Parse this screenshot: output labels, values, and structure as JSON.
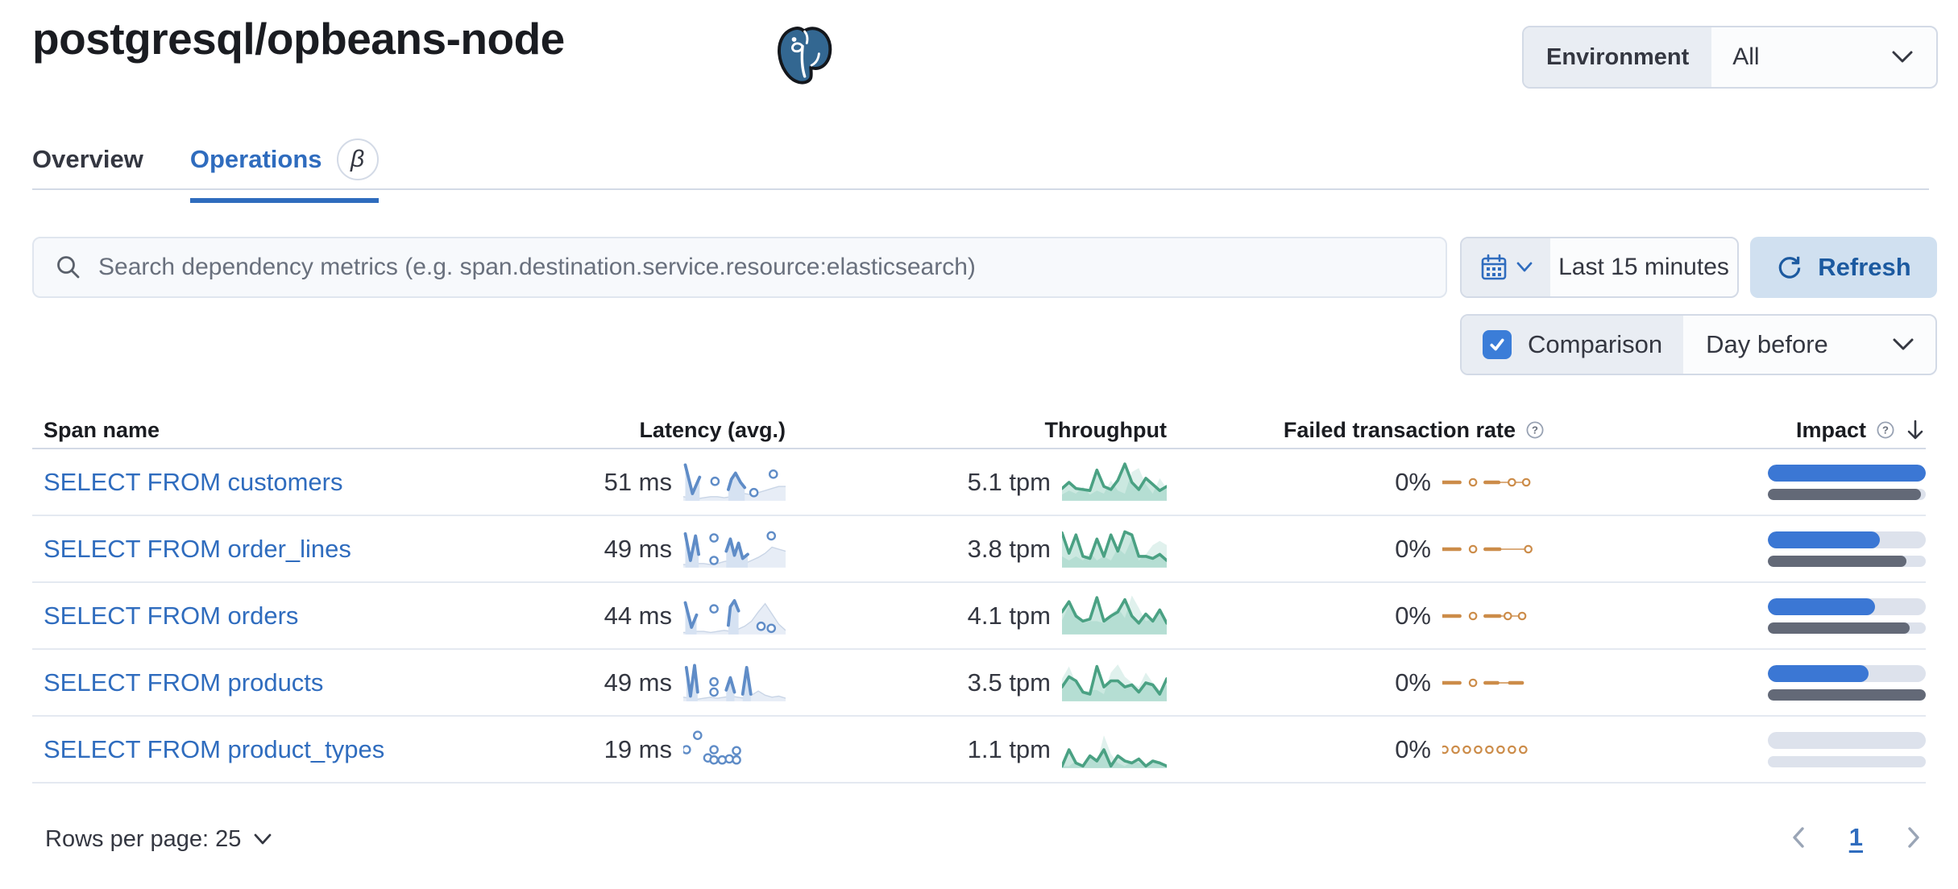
{
  "page": {
    "title": "postgresql/opbeans-node"
  },
  "env_filter": {
    "label": "Environment",
    "value": "All"
  },
  "tabs": [
    {
      "label": "Overview",
      "active": false
    },
    {
      "label": "Operations",
      "active": true,
      "beta": "β"
    }
  ],
  "toolbar": {
    "search_placeholder": "Search dependency metrics (e.g. span.destination.service.resource:elasticsearch)",
    "time_range": "Last 15 minutes",
    "refresh_label": "Refresh",
    "comparison_label": "Comparison",
    "comparison_checked": true,
    "comparison_option": "Day before"
  },
  "table": {
    "columns": [
      {
        "label": "Span name"
      },
      {
        "label": "Latency (avg.)"
      },
      {
        "label": "Throughput"
      },
      {
        "label": "Failed transaction rate",
        "info": true
      },
      {
        "label": "Impact",
        "info": true,
        "sorted": "desc"
      }
    ],
    "rows": [
      {
        "span_name": "SELECT FROM customers",
        "latency": "51 ms",
        "throughput": "5.1 tpm",
        "failed_rate": "0%",
        "impact": {
          "current": 100,
          "previous": 97
        },
        "latency_spark": {
          "prev": [
            36,
            37,
            38,
            37,
            36,
            36,
            37,
            36,
            34,
            33,
            34,
            32,
            30,
            28,
            26,
            26
          ],
          "segments": [
            [
              [
                2,
                5
              ],
              [
                9,
                33
              ],
              [
                16,
                17
              ]
            ],
            [
              [
                44,
                29
              ],
              [
                47,
                19
              ],
              [
                51,
                13
              ],
              [
                56,
                22
              ],
              [
                60,
                27
              ]
            ]
          ],
          "markers": [
            [
              31,
              21
            ],
            [
              69,
              32
            ],
            [
              88,
              14
            ]
          ]
        },
        "throughput_spark": {
          "prev": [
            34,
            30,
            33,
            26,
            34,
            30,
            33,
            20,
            30,
            33,
            12,
            8,
            24,
            33,
            18,
            28
          ],
          "curr": [
            28,
            22,
            28,
            29,
            30,
            10,
            26,
            29,
            20,
            4,
            22,
            29,
            18,
            24,
            30,
            26
          ]
        },
        "failed_spark": {
          "dashes": [
            [
              0,
              17
            ],
            [
              42,
              55
            ]
          ],
          "lines": [
            [
              55,
              84
            ]
          ],
          "circles": [
            30,
            68,
            82
          ]
        }
      },
      {
        "span_name": "SELECT FROM order_lines",
        "latency": "49 ms",
        "throughput": "3.8 tpm",
        "failed_rate": "0%",
        "impact": {
          "current": 71,
          "previous": 88
        },
        "latency_spark": {
          "prev": [
            37,
            37,
            36,
            36,
            37,
            36,
            34,
            33,
            34,
            36,
            33,
            30,
            26,
            20,
            22,
            24
          ],
          "segments": [
            [
              [
                2,
                7
              ],
              [
                7,
                33
              ],
              [
                12,
                9
              ],
              [
                15,
                27
              ]
            ],
            [
              [
                42,
                24
              ],
              [
                46,
                12
              ],
              [
                50,
                28
              ],
              [
                54,
                16
              ],
              [
                58,
                31
              ],
              [
                63,
                27
              ]
            ]
          ],
          "markers": [
            [
              30,
              11
            ],
            [
              30,
              33
            ],
            [
              86,
              9
            ]
          ]
        },
        "throughput_spark": {
          "prev": [
            29,
            33,
            29,
            33,
            25,
            33,
            29,
            33,
            21,
            27,
            12,
            33,
            27,
            18,
            14,
            18
          ],
          "curr": [
            6,
            26,
            8,
            29,
            31,
            12,
            29,
            8,
            24,
            5,
            8,
            29,
            29,
            31,
            27,
            33
          ]
        },
        "failed_spark": {
          "dashes": [
            [
              0,
              17
            ],
            [
              42,
              56
            ]
          ],
          "lines": [
            [
              56,
              84
            ]
          ],
          "circles": [
            30,
            84
          ]
        }
      },
      {
        "span_name": "SELECT FROM orders",
        "latency": "44 ms",
        "throughput": "4.1 tpm",
        "failed_rate": "0%",
        "impact": {
          "current": 68,
          "previous": 90
        },
        "latency_spark": {
          "prev": [
            38,
            38,
            37,
            37,
            38,
            37,
            36,
            37,
            35,
            32,
            27,
            18,
            10,
            20,
            30,
            36
          ],
          "segments": [
            [
              [
                2,
                9
              ],
              [
                8,
                33
              ],
              [
                13,
                21
              ]
            ],
            [
              [
                44,
                31
              ],
              [
                46,
                13
              ],
              [
                50,
                7
              ],
              [
                54,
                17
              ]
            ]
          ],
          "markers": [
            [
              30,
              15
            ],
            [
              76,
              32
            ],
            [
              86,
              34
            ]
          ]
        },
        "throughput_spark": {
          "prev": [
            26,
            12,
            18,
            29,
            27,
            27,
            29,
            20,
            14,
            24,
            2,
            14,
            27,
            25,
            18,
            29
          ],
          "curr": [
            18,
            8,
            22,
            27,
            25,
            4,
            27,
            22,
            18,
            6,
            22,
            29,
            20,
            27,
            16,
            29
          ]
        },
        "failed_spark": {
          "dashes": [
            [
              0,
              17
            ],
            [
              42,
              56
            ]
          ],
          "lines": [
            [
              56,
              76
            ]
          ],
          "circles": [
            30,
            64,
            78
          ]
        }
      },
      {
        "span_name": "SELECT FROM products",
        "latency": "49 ms",
        "throughput": "3.5 tpm",
        "failed_rate": "0%",
        "impact": {
          "current": 64,
          "previous": 100
        },
        "latency_spark": {
          "prev": [
            36,
            37,
            38,
            37,
            36,
            37,
            36,
            35,
            36,
            37,
            34,
            30,
            34,
            36,
            35,
            37
          ],
          "segments": [
            [
              [
                3,
                7
              ],
              [
                7,
                35
              ],
              [
                11,
                5
              ],
              [
                14,
                31
              ]
            ],
            [
              [
                42,
                29
              ],
              [
                46,
                17
              ],
              [
                50,
                31
              ]
            ],
            [
              [
                58,
                33
              ],
              [
                62,
                7
              ],
              [
                66,
                33
              ]
            ]
          ],
          "markers": [
            [
              30,
              21
            ],
            [
              30,
              31
            ]
          ]
        },
        "throughput_spark": {
          "prev": [
            18,
            6,
            22,
            31,
            29,
            29,
            33,
            12,
            4,
            16,
            22,
            26,
            12,
            22,
            29,
            24
          ],
          "curr": [
            26,
            16,
            20,
            31,
            33,
            6,
            26,
            20,
            20,
            26,
            24,
            31,
            22,
            24,
            33,
            18
          ]
        },
        "failed_spark": {
          "dashes": [
            [
              0,
              17
            ],
            [
              42,
              54
            ],
            [
              66,
              78
            ]
          ],
          "lines": [
            [
              54,
              66
            ]
          ],
          "circles": [
            30
          ]
        }
      },
      {
        "span_name": "SELECT FROM product_types",
        "latency": "19 ms",
        "throughput": "1.1 tpm",
        "failed_rate": "0%",
        "impact": {
          "current": 0,
          "previous": 0
        },
        "latency_spark": {
          "prev": [],
          "segments": [],
          "markers": [
            [
              3,
              22
            ],
            [
              14,
              8
            ],
            [
              24,
              30
            ],
            [
              30,
              22
            ],
            [
              30,
              32
            ],
            [
              38,
              32
            ],
            [
              45,
              31
            ],
            [
              52,
              23
            ],
            [
              52,
              32
            ]
          ]
        },
        "throughput_spark": {
          "prev": [
            38,
            38,
            33,
            38,
            28,
            35,
            8,
            26,
            35,
            38,
            33,
            35,
            38,
            35,
            33,
            38
          ],
          "curr": [
            38,
            22,
            35,
            38,
            28,
            33,
            22,
            38,
            28,
            33,
            35,
            31,
            38,
            33,
            35,
            38
          ]
        },
        "failed_spark": {
          "dashes": [],
          "lines": [],
          "circles": [
            2,
            13,
            24,
            35,
            46,
            57,
            68,
            79
          ]
        }
      }
    ]
  },
  "footer": {
    "rows_per_page_label": "Rows per page: 25",
    "page_number": "1"
  },
  "colors": {
    "link_blue": "#2F6CBE",
    "latency_line": "#5F8CC7",
    "latency_area": "#D6E2F2",
    "latency_prev_area": "#E7EDF6",
    "latency_prev_line": "#C9D5E6",
    "throughput_line": "#4AA183",
    "throughput_area": "rgba(84,179,153,0.30)",
    "throughput_prev_area": "rgba(84,179,153,0.18)",
    "failed": "#CC8C49",
    "failed_light": "#D09457",
    "impact_current": "#3B77D4",
    "impact_previous": "#636977",
    "impact_track": "#DDE2EC"
  }
}
